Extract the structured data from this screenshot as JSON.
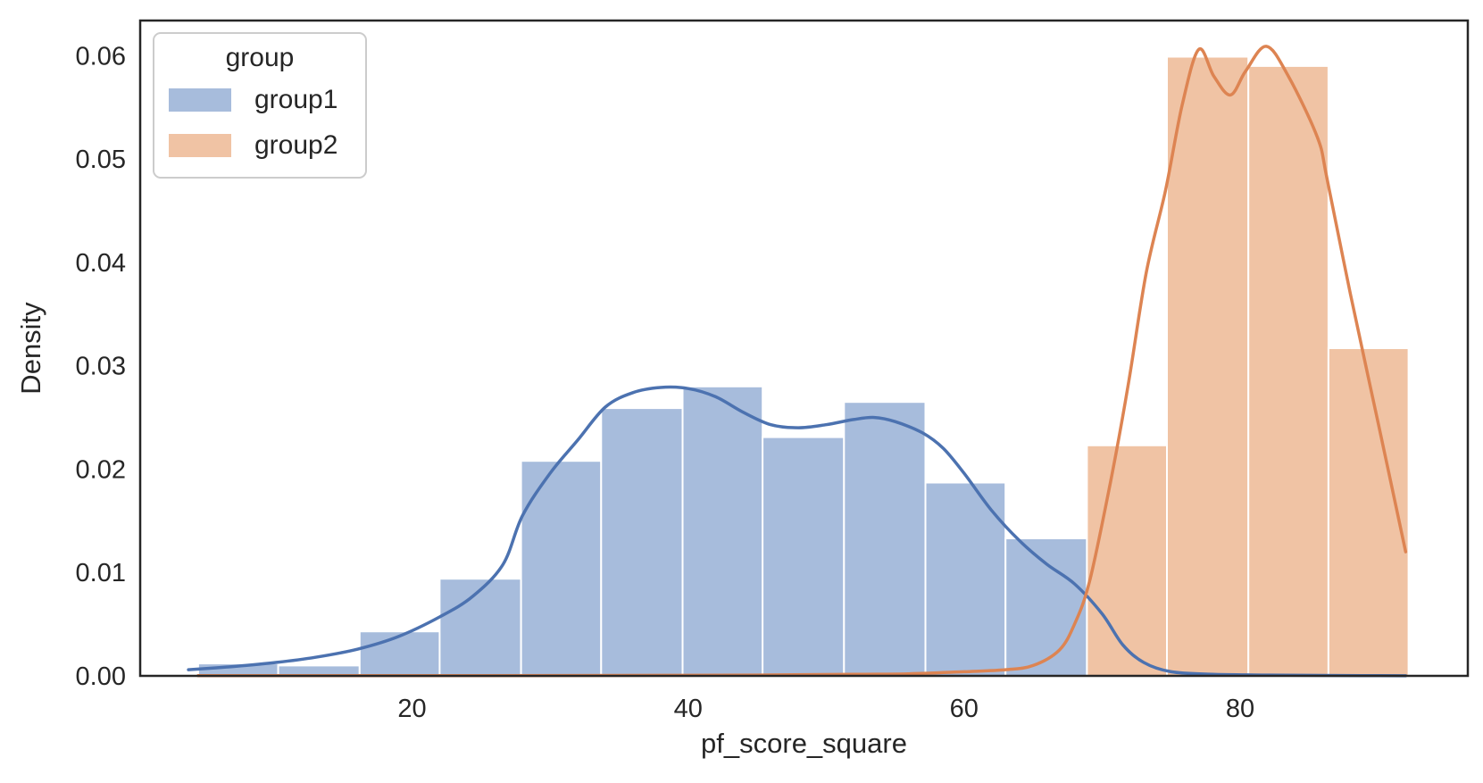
{
  "legend": {
    "title": "group",
    "items": [
      {
        "label": "group1",
        "swatch_color": "#a7bcdc"
      },
      {
        "label": "group2",
        "swatch_color": "#f0c3a4"
      }
    ]
  },
  "chart_data": {
    "type": "histogram+kde",
    "title": "",
    "xlabel": "pf_score_square",
    "ylabel": "Density",
    "x_ticks": [
      20,
      40,
      60,
      80
    ],
    "y_ticks": [
      "0.00",
      "0.01",
      "0.02",
      "0.03",
      "0.04",
      "0.05",
      "0.06"
    ],
    "xlim": [
      0.3,
      96.5
    ],
    "ylim": [
      0,
      0.0634
    ],
    "grid": false,
    "legend_title": "group",
    "legend_position": "upper left",
    "spine_color": "#262626",
    "text_color": "#262626",
    "bar_edge_color": "#ffffff",
    "series": [
      {
        "name": "group1",
        "bar_fill": "#a7bcdc",
        "line_color": "#4c72b0",
        "bin_edges": [
          4.5,
          10.3,
          16.2,
          22.0,
          27.9,
          33.7,
          39.6,
          45.4,
          51.3,
          57.2,
          63.0,
          68.9
        ],
        "densities": [
          0.0012,
          0.001,
          0.0043,
          0.0094,
          0.0208,
          0.0259,
          0.028,
          0.0231,
          0.0265,
          0.0187,
          0.0133
        ],
        "kde_points": [
          [
            3.8,
            0.0006
          ],
          [
            7,
            0.0009
          ],
          [
            10.2,
            0.0013
          ],
          [
            13,
            0.0018
          ],
          [
            16.1,
            0.0026
          ],
          [
            19,
            0.0038
          ],
          [
            22,
            0.0057
          ],
          [
            24.4,
            0.0077
          ],
          [
            26.6,
            0.0108
          ],
          [
            28,
            0.0155
          ],
          [
            30,
            0.0196
          ],
          [
            32,
            0.0228
          ],
          [
            34,
            0.026
          ],
          [
            36,
            0.0274
          ],
          [
            38,
            0.0279
          ],
          [
            40,
            0.0278
          ],
          [
            42,
            0.027
          ],
          [
            44,
            0.0255
          ],
          [
            46,
            0.0243
          ],
          [
            48,
            0.024
          ],
          [
            50,
            0.0243
          ],
          [
            52,
            0.0248
          ],
          [
            53.5,
            0.025
          ],
          [
            55,
            0.0246
          ],
          [
            57,
            0.0235
          ],
          [
            58.5,
            0.022
          ],
          [
            60,
            0.0196
          ],
          [
            62,
            0.016
          ],
          [
            64,
            0.0131
          ],
          [
            66,
            0.0108
          ],
          [
            68,
            0.0089
          ],
          [
            70,
            0.006
          ],
          [
            71.5,
            0.003
          ],
          [
            73,
            0.0013
          ],
          [
            75,
            0.0004
          ],
          [
            78,
            0.00015
          ],
          [
            82,
            8e-05
          ],
          [
            86,
            4e-05
          ],
          [
            90,
            2e-05
          ],
          [
            92,
            1e-05
          ]
        ]
      },
      {
        "name": "group2",
        "bar_fill": "#f0c3a4",
        "line_color": "#dd8452",
        "bin_edges": [
          68.9,
          74.7,
          80.6,
          86.4,
          92.2
        ],
        "densities": [
          0.0223,
          0.0599,
          0.059,
          0.0317
        ],
        "kde_points": [
          [
            4.5,
            2e-05
          ],
          [
            15,
            2e-05
          ],
          [
            25,
            3e-05
          ],
          [
            35,
            4e-05
          ],
          [
            45,
            8e-05
          ],
          [
            52,
            0.00015
          ],
          [
            56,
            0.0002
          ],
          [
            60,
            0.0004
          ],
          [
            63,
            0.0006
          ],
          [
            65,
            0.001
          ],
          [
            66.9,
            0.0025
          ],
          [
            68,
            0.005
          ],
          [
            69.1,
            0.0092
          ],
          [
            70.6,
            0.0187
          ],
          [
            71.9,
            0.0282
          ],
          [
            73.2,
            0.039
          ],
          [
            74.6,
            0.047
          ],
          [
            75.8,
            0.0552
          ],
          [
            77,
            0.0606
          ],
          [
            78.1,
            0.058
          ],
          [
            79.3,
            0.0562
          ],
          [
            80.4,
            0.0585
          ],
          [
            81.9,
            0.0609
          ],
          [
            83.5,
            0.058
          ],
          [
            85.6,
            0.0521
          ],
          [
            86.3,
            0.0481
          ],
          [
            88,
            0.0369
          ],
          [
            90,
            0.0245
          ],
          [
            92,
            0.012
          ]
        ]
      }
    ]
  }
}
